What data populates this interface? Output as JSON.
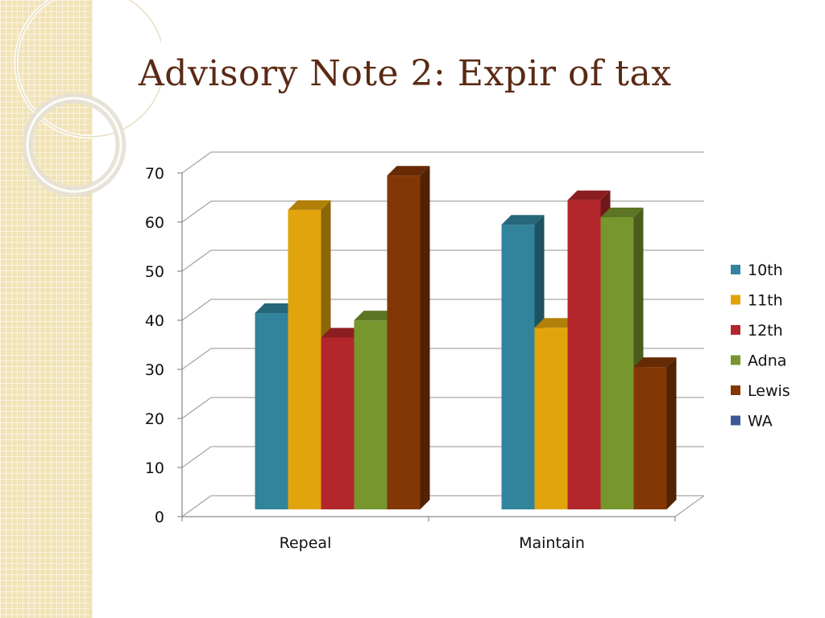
{
  "slide": {
    "title": "Advisory Note 2: Expir of tax"
  },
  "colors": {
    "title": "#5a2a14",
    "panel": "#f1e3b8"
  },
  "chart_data": {
    "type": "bar",
    "title": "",
    "xlabel": "",
    "ylabel": "",
    "categories": [
      "Repeal",
      "Maintain"
    ],
    "ylim": [
      0,
      70
    ],
    "yticks": [
      0,
      10,
      20,
      30,
      40,
      50,
      60,
      70
    ],
    "grid": true,
    "legend": "right",
    "style": "3d-clustered-column",
    "series": [
      {
        "name": "10th",
        "color": "#31849b",
        "values": [
          40,
          58
        ]
      },
      {
        "name": "11th",
        "color": "#e2a40b",
        "values": [
          61,
          37
        ]
      },
      {
        "name": "12th",
        "color": "#b3262c",
        "values": [
          35,
          63
        ]
      },
      {
        "name": "Adna",
        "color": "#77962e",
        "values": [
          38.5,
          59.5
        ]
      },
      {
        "name": "Lewis",
        "color": "#833705",
        "values": [
          68,
          29
        ]
      },
      {
        "name": "WA",
        "color": "#3d5896",
        "values": [
          0,
          0
        ]
      }
    ]
  }
}
